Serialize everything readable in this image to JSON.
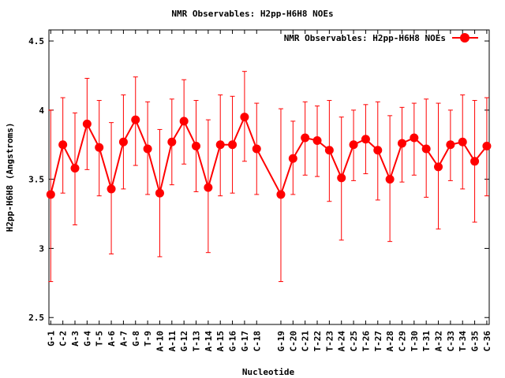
{
  "chart_data": {
    "type": "line",
    "title": "NMR Observables: H2pp-H6H8 NOEs",
    "xlabel": "Nucleotide",
    "ylabel": "H2pp-H6H8 (Angstroms)",
    "ylim": [
      2.45,
      4.58
    ],
    "xlim": [
      0.85,
      37.2
    ],
    "grid": false,
    "legend_position": "top-right",
    "y_ticks": [
      2.5,
      3,
      3.5,
      4,
      4.5
    ],
    "y_tick_labels": [
      "2.5",
      "3",
      "3.5",
      "4",
      "4.5"
    ],
    "series": [
      {
        "name": "NMR Observables: H2pp-H6H8 NOEs",
        "color": "#ff0000",
        "points": [
          {
            "x": 1,
            "label": "G-1",
            "y": 3.39,
            "ylo": 2.76,
            "yhi": 4.0
          },
          {
            "x": 2,
            "label": "C-2",
            "y": 3.75,
            "ylo": 3.4,
            "yhi": 4.09
          },
          {
            "x": 3,
            "label": "A-3",
            "y": 3.58,
            "ylo": 3.17,
            "yhi": 3.98
          },
          {
            "x": 4,
            "label": "G-4",
            "y": 3.9,
            "ylo": 3.57,
            "yhi": 4.23
          },
          {
            "x": 5,
            "label": "T-5",
            "y": 3.73,
            "ylo": 3.38,
            "yhi": 4.07
          },
          {
            "x": 6,
            "label": "A-6",
            "y": 3.43,
            "ylo": 2.96,
            "yhi": 3.91
          },
          {
            "x": 7,
            "label": "A-7",
            "y": 3.77,
            "ylo": 3.43,
            "yhi": 4.11
          },
          {
            "x": 8,
            "label": "G-8",
            "y": 3.93,
            "ylo": 3.6,
            "yhi": 4.24
          },
          {
            "x": 9,
            "label": "T-9",
            "y": 3.72,
            "ylo": 3.39,
            "yhi": 4.06
          },
          {
            "x": 10,
            "label": "A-10",
            "y": 3.4,
            "ylo": 2.94,
            "yhi": 3.86
          },
          {
            "x": 11,
            "label": "A-11",
            "y": 3.77,
            "ylo": 3.46,
            "yhi": 4.08
          },
          {
            "x": 12,
            "label": "G-12",
            "y": 3.92,
            "ylo": 3.61,
            "yhi": 4.22
          },
          {
            "x": 13,
            "label": "T-13",
            "y": 3.74,
            "ylo": 3.41,
            "yhi": 4.07
          },
          {
            "x": 14,
            "label": "A-14",
            "y": 3.44,
            "ylo": 2.97,
            "yhi": 3.93
          },
          {
            "x": 15,
            "label": "A-15",
            "y": 3.75,
            "ylo": 3.38,
            "yhi": 4.11
          },
          {
            "x": 16,
            "label": "G-16",
            "y": 3.75,
            "ylo": 3.4,
            "yhi": 4.1
          },
          {
            "x": 17,
            "label": "G-17",
            "y": 3.95,
            "ylo": 3.63,
            "yhi": 4.28
          },
          {
            "x": 18,
            "label": "C-18",
            "y": 3.72,
            "ylo": 3.39,
            "yhi": 4.05
          },
          {
            "x": 20,
            "label": "G-19",
            "y": 3.39,
            "ylo": 2.76,
            "yhi": 4.01
          },
          {
            "x": 21,
            "label": "C-20",
            "y": 3.65,
            "ylo": 3.39,
            "yhi": 3.92
          },
          {
            "x": 22,
            "label": "C-21",
            "y": 3.8,
            "ylo": 3.53,
            "yhi": 4.06
          },
          {
            "x": 23,
            "label": "T-22",
            "y": 3.78,
            "ylo": 3.52,
            "yhi": 4.03
          },
          {
            "x": 24,
            "label": "T-23",
            "y": 3.71,
            "ylo": 3.34,
            "yhi": 4.07
          },
          {
            "x": 25,
            "label": "A-24",
            "y": 3.51,
            "ylo": 3.06,
            "yhi": 3.95
          },
          {
            "x": 26,
            "label": "C-25",
            "y": 3.75,
            "ylo": 3.49,
            "yhi": 4.0
          },
          {
            "x": 27,
            "label": "T-26",
            "y": 3.79,
            "ylo": 3.54,
            "yhi": 4.04
          },
          {
            "x": 28,
            "label": "T-27",
            "y": 3.71,
            "ylo": 3.35,
            "yhi": 4.06
          },
          {
            "x": 29,
            "label": "A-28",
            "y": 3.5,
            "ylo": 3.05,
            "yhi": 3.96
          },
          {
            "x": 30,
            "label": "C-29",
            "y": 3.76,
            "ylo": 3.48,
            "yhi": 4.02
          },
          {
            "x": 31,
            "label": "T-30",
            "y": 3.8,
            "ylo": 3.53,
            "yhi": 4.05
          },
          {
            "x": 32,
            "label": "T-31",
            "y": 3.72,
            "ylo": 3.37,
            "yhi": 4.08
          },
          {
            "x": 33,
            "label": "A-32",
            "y": 3.59,
            "ylo": 3.14,
            "yhi": 4.05
          },
          {
            "x": 34,
            "label": "C-33",
            "y": 3.75,
            "ylo": 3.49,
            "yhi": 4.0
          },
          {
            "x": 35,
            "label": "T-34",
            "y": 3.77,
            "ylo": 3.43,
            "yhi": 4.11
          },
          {
            "x": 36,
            "label": "G-35",
            "y": 3.63,
            "ylo": 3.19,
            "yhi": 4.07
          },
          {
            "x": 37,
            "label": "C-36",
            "y": 3.74,
            "ylo": 3.38,
            "yhi": 4.09
          }
        ]
      }
    ]
  }
}
